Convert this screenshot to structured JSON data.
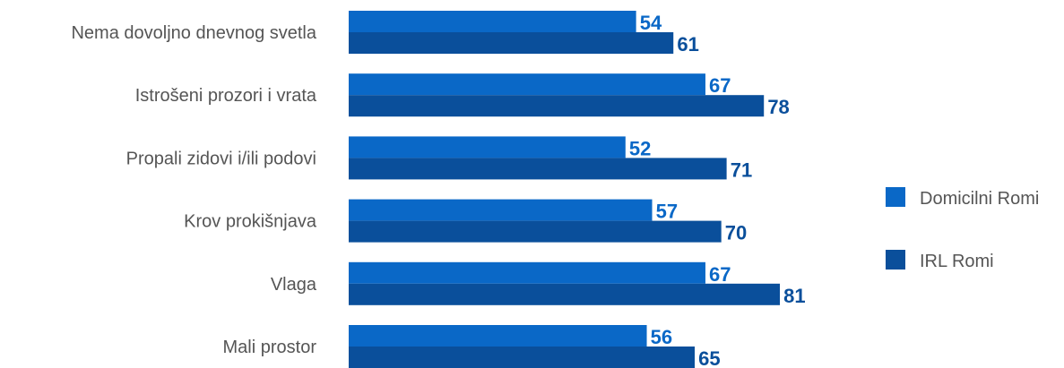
{
  "chart_data": {
    "type": "bar",
    "orientation": "horizontal",
    "categories": [
      "Nema dovoljno dnevnog svetla",
      "Istrošeni prozori i vrata",
      "Propali zidovi i/ili podovi",
      "Krov prokišnjava",
      "Vlaga",
      "Mali prostor"
    ],
    "series": [
      {
        "name": "Domicilni Romi",
        "color": "#0a68c7",
        "values": [
          54,
          67,
          52,
          57,
          67,
          56
        ]
      },
      {
        "name": "IRL Romi",
        "color": "#0a4f9b",
        "values": [
          61,
          78,
          71,
          70,
          81,
          65
        ]
      }
    ],
    "xlim": [
      0,
      100
    ],
    "grid": false,
    "legend_position": "right",
    "data_labels": true
  }
}
